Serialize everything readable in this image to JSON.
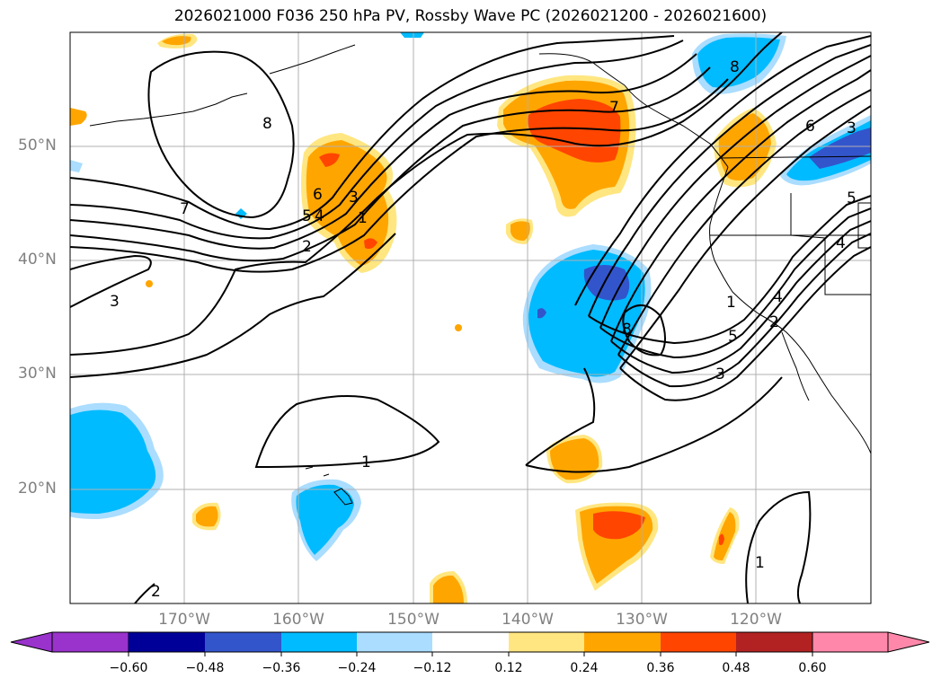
{
  "title": "2026021000 F036 250 hPa PV, Rossby Wave PC (2026021200 - 2026021600)",
  "lat_labels": [
    "50°N",
    "40°N",
    "30°N",
    "20°N"
  ],
  "lon_labels": [
    "170°W",
    "160°W",
    "150°W",
    "140°W",
    "130°W",
    "120°W"
  ],
  "colorbar": {
    "ticks": [
      "−0.60",
      "−0.48",
      "−0.36",
      "−0.24",
      "−0.12",
      "0.12",
      "0.24",
      "0.36",
      "0.48",
      "0.60"
    ],
    "colors": [
      "#9933cc",
      "#000099",
      "#3355cc",
      "#00bbff",
      "#aaddff",
      "#ffffff",
      "#ffe680",
      "#ffa500",
      "#ff4500",
      "#b22222",
      "#ff88aa"
    ]
  },
  "contour_labels": [
    "8",
    "7",
    "6",
    "5",
    "4",
    "3",
    "2",
    "1",
    "3",
    "7",
    "6",
    "5",
    "4",
    "3",
    "2",
    "1",
    "8",
    "1",
    "1",
    "5",
    "3",
    "8",
    "4",
    "2"
  ]
}
